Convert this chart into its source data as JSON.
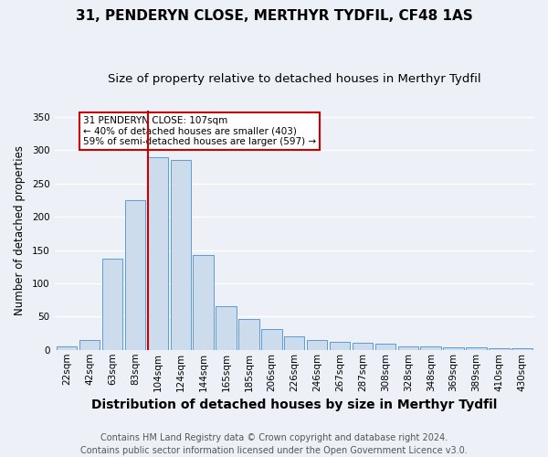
{
  "title": "31, PENDERYN CLOSE, MERTHYR TYDFIL, CF48 1AS",
  "subtitle": "Size of property relative to detached houses in Merthyr Tydfil",
  "xlabel": "Distribution of detached houses by size in Merthyr Tydfil",
  "ylabel": "Number of detached properties",
  "categories": [
    "22sqm",
    "42sqm",
    "63sqm",
    "83sqm",
    "104sqm",
    "124sqm",
    "144sqm",
    "165sqm",
    "185sqm",
    "206sqm",
    "226sqm",
    "246sqm",
    "267sqm",
    "287sqm",
    "308sqm",
    "328sqm",
    "348sqm",
    "369sqm",
    "389sqm",
    "410sqm",
    "430sqm"
  ],
  "values": [
    5,
    15,
    137,
    225,
    290,
    285,
    142,
    65,
    46,
    31,
    20,
    15,
    12,
    11,
    9,
    5,
    5,
    4,
    4,
    3,
    3
  ],
  "bar_color": "#ccdcec",
  "bar_edge_color": "#5b9bd5",
  "vline_color": "#cc0000",
  "annotation_text": "31 PENDERYN CLOSE: 107sqm\n← 40% of detached houses are smaller (403)\n59% of semi-detached houses are larger (597) →",
  "box_color": "#ffffff",
  "box_edge_color": "#cc0000",
  "footnote": "Contains HM Land Registry data © Crown copyright and database right 2024.\nContains public sector information licensed under the Open Government Licence v3.0.",
  "ylim": [
    0,
    360
  ],
  "background_color": "#edf1f7",
  "grid_color": "#ffffff",
  "title_fontsize": 11,
  "subtitle_fontsize": 9.5,
  "xlabel_fontsize": 10,
  "ylabel_fontsize": 8.5,
  "tick_fontsize": 7.5,
  "footnote_fontsize": 7
}
